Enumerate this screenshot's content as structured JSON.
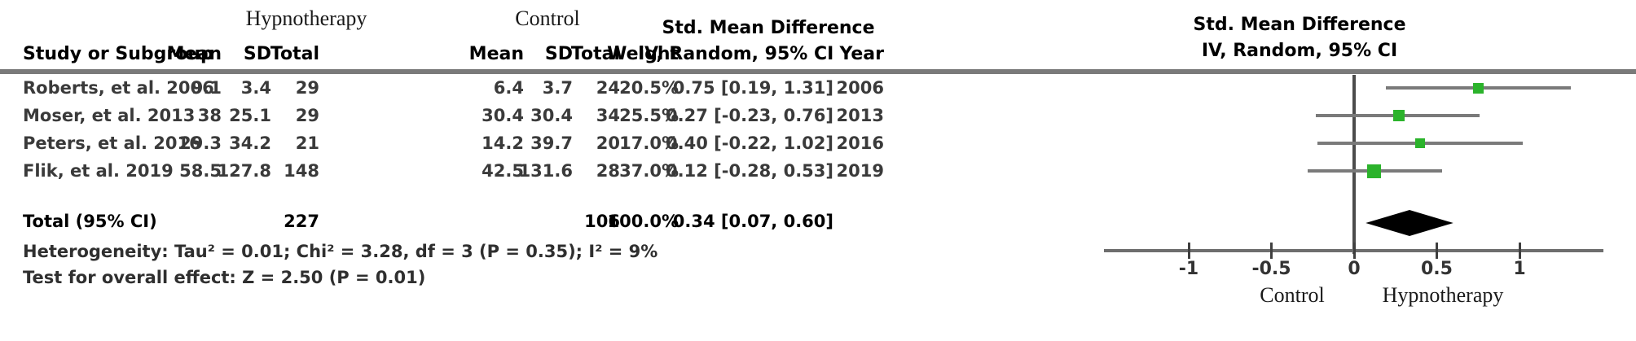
{
  "figure": {
    "groups": {
      "experimental": "Hypnotherapy",
      "control": "Control"
    },
    "table": {
      "effect_header": "Std. Mean Difference",
      "columns": {
        "study": "Study or Subgroup",
        "mean_e": "Mean",
        "sd_e": "SD",
        "total_e": "Total",
        "mean_c": "Mean",
        "sd_c": "SD",
        "total_c": "Total",
        "weight": "Weight",
        "ci": "IV, Random, 95% CI",
        "year": "Year"
      },
      "rows": [
        {
          "study": "Roberts, et al. 2006",
          "mean_e": "9.1",
          "sd_e": "3.4",
          "total_e": "29",
          "mean_c": "6.4",
          "sd_c": "3.7",
          "total_c": "24",
          "weight": "20.5%",
          "ci": "0.75 [0.19, 1.31]",
          "year": "2006"
        },
        {
          "study": "Moser, et al. 2013",
          "mean_e": "38",
          "sd_e": "25.1",
          "total_e": "29",
          "mean_c": "30.4",
          "sd_c": "30.4",
          "total_c": "34",
          "weight": "25.5%",
          "ci": "0.27 [-0.23, 0.76]",
          "year": "2013"
        },
        {
          "study": "Peters, et al. 2016",
          "mean_e": "29.3",
          "sd_e": "34.2",
          "total_e": "21",
          "mean_c": "14.2",
          "sd_c": "39.7",
          "total_c": "20",
          "weight": "17.0%",
          "ci": "0.40 [-0.22, 1.02]",
          "year": "2016"
        },
        {
          "study": "Flik, et al. 2019",
          "mean_e": "58.5",
          "sd_e": "127.8",
          "total_e": "148",
          "mean_c": "42.5",
          "sd_c": "131.6",
          "total_c": "28",
          "weight": "37.0%",
          "ci": "0.12 [-0.28, 0.53]",
          "year": "2019"
        }
      ],
      "total_row": {
        "study": "Total (95% CI)",
        "total_e": "227",
        "total_c": "106",
        "weight": "100.0%",
        "ci": "0.34 [0.07, 0.60]"
      },
      "heterogeneity": "Heterogeneity: Tau² = 0.01; Chi² = 3.28, df = 3 (P = 0.35); I² = 9%",
      "overall_effect": "Test for overall effect: Z = 2.50 (P = 0.01)"
    },
    "plot": {
      "header_line1": "Std. Mean Difference",
      "header_line2": "IV, Random, 95% CI",
      "left_label": "Control",
      "right_label": "Hypnotherapy"
    }
  },
  "chart_data": {
    "type": "forest",
    "effect_measure": "Std. Mean Difference",
    "method": "IV, Random, 95% CI",
    "studies": [
      {
        "name": "Roberts, et al. 2006",
        "estimate": 0.75,
        "ci_lower": 0.19,
        "ci_upper": 1.31,
        "weight_pct": 20.5,
        "year": 2006
      },
      {
        "name": "Moser, et al. 2013",
        "estimate": 0.27,
        "ci_lower": -0.23,
        "ci_upper": 0.76,
        "weight_pct": 25.5,
        "year": 2013
      },
      {
        "name": "Peters, et al. 2016",
        "estimate": 0.4,
        "ci_lower": -0.22,
        "ci_upper": 1.02,
        "weight_pct": 17.0,
        "year": 2016
      },
      {
        "name": "Flik, et al. 2019",
        "estimate": 0.12,
        "ci_lower": -0.28,
        "ci_upper": 0.53,
        "weight_pct": 37.0,
        "year": 2019
      }
    ],
    "total": {
      "estimate": 0.34,
      "ci_lower": 0.07,
      "ci_upper": 0.6,
      "n_experimental": 227,
      "n_control": 106,
      "weight_pct": 100.0
    },
    "heterogeneity": {
      "tau2": 0.01,
      "chi2": 3.28,
      "df": 3,
      "p": 0.35,
      "i2_pct": 9
    },
    "overall_effect": {
      "z": 2.5,
      "p": 0.01
    },
    "axis": {
      "ticks": [
        -1,
        -0.5,
        0,
        0.5,
        1
      ],
      "xlim": [
        -1.51,
        1.51
      ],
      "left_label": "Control",
      "right_label": "Hypnotherapy"
    },
    "marker_color": "#2bb32b",
    "line_color": "#7a7a7a"
  }
}
